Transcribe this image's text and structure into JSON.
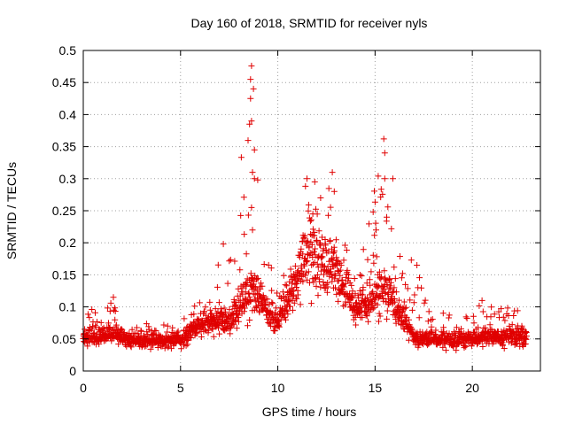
{
  "chart_data": {
    "type": "scatter",
    "title": "Day 160 of 2018, SRMTID for receiver nyls",
    "xlabel": "GPS time / hours",
    "ylabel": "SRMTID / TECUs",
    "xlim": [
      0,
      23.5
    ],
    "ylim": [
      0,
      0.5
    ],
    "x_ticks": [
      0,
      5,
      10,
      15,
      20
    ],
    "x_tick_labels": [
      "0",
      "5",
      "10",
      "15",
      "20"
    ],
    "y_ticks": [
      0,
      0.05,
      0.1,
      0.15,
      0.2,
      0.25,
      0.3,
      0.35,
      0.4,
      0.45,
      0.5
    ],
    "y_tick_labels": [
      "0",
      "0.05",
      "0.1",
      "0.15",
      "0.2",
      "0.25",
      "0.3",
      "0.35",
      "0.4",
      "0.45",
      "0.5"
    ],
    "grid": true,
    "marker": "+",
    "marker_color": "#e00000",
    "series": [
      {
        "name": "SRMTID",
        "note": "dense point cloud approximated by a baseline envelope plus sampled notable values",
        "baseline_envelope": [
          {
            "x": 0,
            "min": 0.025,
            "median": 0.05,
            "max": 0.1
          },
          {
            "x": 1.5,
            "min": 0.025,
            "median": 0.055,
            "max": 0.115
          },
          {
            "x": 2.5,
            "min": 0.015,
            "median": 0.045,
            "max": 0.075
          },
          {
            "x": 5,
            "min": 0.02,
            "median": 0.045,
            "max": 0.075
          },
          {
            "x": 6,
            "min": 0.03,
            "median": 0.07,
            "max": 0.12
          },
          {
            "x": 7.5,
            "min": 0.03,
            "median": 0.075,
            "max": 0.2
          },
          {
            "x": 8.7,
            "min": 0.04,
            "median": 0.12,
            "max": 0.475
          },
          {
            "x": 10,
            "min": 0.035,
            "median": 0.07,
            "max": 0.12
          },
          {
            "x": 11.5,
            "min": 0.05,
            "median": 0.17,
            "max": 0.3
          },
          {
            "x": 12.8,
            "min": 0.05,
            "median": 0.15,
            "max": 0.31
          },
          {
            "x": 14,
            "min": 0.04,
            "median": 0.09,
            "max": 0.14
          },
          {
            "x": 15.5,
            "min": 0.04,
            "median": 0.12,
            "max": 0.36
          },
          {
            "x": 17,
            "min": 0.025,
            "median": 0.05,
            "max": 0.165
          },
          {
            "x": 19,
            "min": 0.02,
            "median": 0.045,
            "max": 0.1
          },
          {
            "x": 21,
            "min": 0.02,
            "median": 0.05,
            "max": 0.11
          },
          {
            "x": 22.8,
            "min": 0.02,
            "median": 0.05,
            "max": 0.09
          }
        ],
        "notable_points": [
          {
            "x": 8.65,
            "y": 0.476
          },
          {
            "x": 8.6,
            "y": 0.455
          },
          {
            "x": 8.75,
            "y": 0.44
          },
          {
            "x": 8.6,
            "y": 0.425
          },
          {
            "x": 8.65,
            "y": 0.39
          },
          {
            "x": 8.55,
            "y": 0.385
          },
          {
            "x": 8.8,
            "y": 0.345
          },
          {
            "x": 8.7,
            "y": 0.31
          },
          {
            "x": 8.8,
            "y": 0.3
          },
          {
            "x": 8.65,
            "y": 0.255
          },
          {
            "x": 8.7,
            "y": 0.22
          },
          {
            "x": 7.2,
            "y": 0.198
          },
          {
            "x": 15.45,
            "y": 0.362
          },
          {
            "x": 15.5,
            "y": 0.34
          },
          {
            "x": 15.5,
            "y": 0.3
          },
          {
            "x": 15.6,
            "y": 0.24
          },
          {
            "x": 14.9,
            "y": 0.248
          },
          {
            "x": 15.05,
            "y": 0.22
          },
          {
            "x": 12.8,
            "y": 0.31
          },
          {
            "x": 12.9,
            "y": 0.28
          },
          {
            "x": 11.5,
            "y": 0.3
          },
          {
            "x": 11.9,
            "y": 0.295
          },
          {
            "x": 12.2,
            "y": 0.27
          },
          {
            "x": 11.8,
            "y": 0.245
          },
          {
            "x": 17.15,
            "y": 0.165
          },
          {
            "x": 17.2,
            "y": 0.13
          },
          {
            "x": 20.5,
            "y": 0.11
          },
          {
            "x": 1.55,
            "y": 0.115
          }
        ]
      }
    ]
  }
}
